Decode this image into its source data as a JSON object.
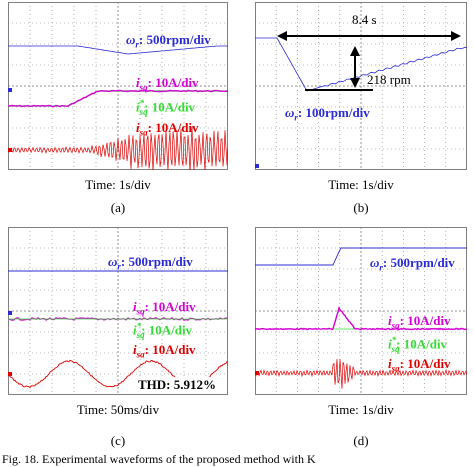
{
  "panels": [
    {
      "id": "a",
      "sub_label": "(a)",
      "time_label": "Time: 1s/div",
      "labels": [
        {
          "sym": "ω",
          "sub": "r",
          "sup": "",
          "val": ": 500rpm/div",
          "color": "blue"
        },
        {
          "sym": "i",
          "sub": "sq",
          "sup": "",
          "val": ": 10A/div",
          "color": "mag"
        },
        {
          "sym": "i",
          "sub": "sq",
          "sup": "*",
          "val": ": 10A/div",
          "color": "grn"
        },
        {
          "sym": "i",
          "sub": "sa",
          "sup": "",
          "val": ": 10A/div",
          "color": "red"
        }
      ]
    },
    {
      "id": "b",
      "sub_label": "(b)",
      "time_label": "Time: 1s/div",
      "annot_time": "8.4 s",
      "annot_rpm": "218 rpm",
      "labels": [
        {
          "sym": "ω",
          "sub": "r",
          "sup": "",
          "val": ": 100rpm/div",
          "color": "blue"
        }
      ]
    },
    {
      "id": "c",
      "sub_label": "(c)",
      "time_label": "Time: 50ms/div",
      "thd": "THD: 5.912%",
      "labels": [
        {
          "sym": "ω",
          "sub": "r",
          "sup": "",
          "val": ": 500rpm/div",
          "color": "blue"
        },
        {
          "sym": "i",
          "sub": "sq",
          "sup": "",
          "val": ": 10A/div",
          "color": "mag"
        },
        {
          "sym": "i",
          "sub": "sq",
          "sup": "*",
          "val": ": 10A/div",
          "color": "grn"
        },
        {
          "sym": "i",
          "sub": "sa",
          "sup": "",
          "val": ": 10A/div",
          "color": "red"
        }
      ]
    },
    {
      "id": "d",
      "sub_label": "(d)",
      "time_label": "Time: 1s/div",
      "labels": [
        {
          "sym": "ω",
          "sub": "r",
          "sup": "",
          "val": ": 500rpm/div",
          "color": "blue"
        },
        {
          "sym": "i",
          "sub": "sq",
          "sup": "",
          "val": ": 10A/div",
          "color": "mag"
        },
        {
          "sym": "i",
          "sub": "sq",
          "sup": "*",
          "val": ": 10A/div",
          "color": "grn"
        },
        {
          "sym": "i",
          "sub": "sa",
          "sup": "",
          "val": ": 10A/div",
          "color": "red"
        }
      ]
    }
  ],
  "caption": "Fig. 18.  Experimental waveforms of the proposed method with K",
  "colors": {
    "blue": "#2b2bd6",
    "mag": "#d400d4",
    "grn": "#33dd33",
    "red": "#e00000",
    "grid": "#7f7f7f"
  }
}
